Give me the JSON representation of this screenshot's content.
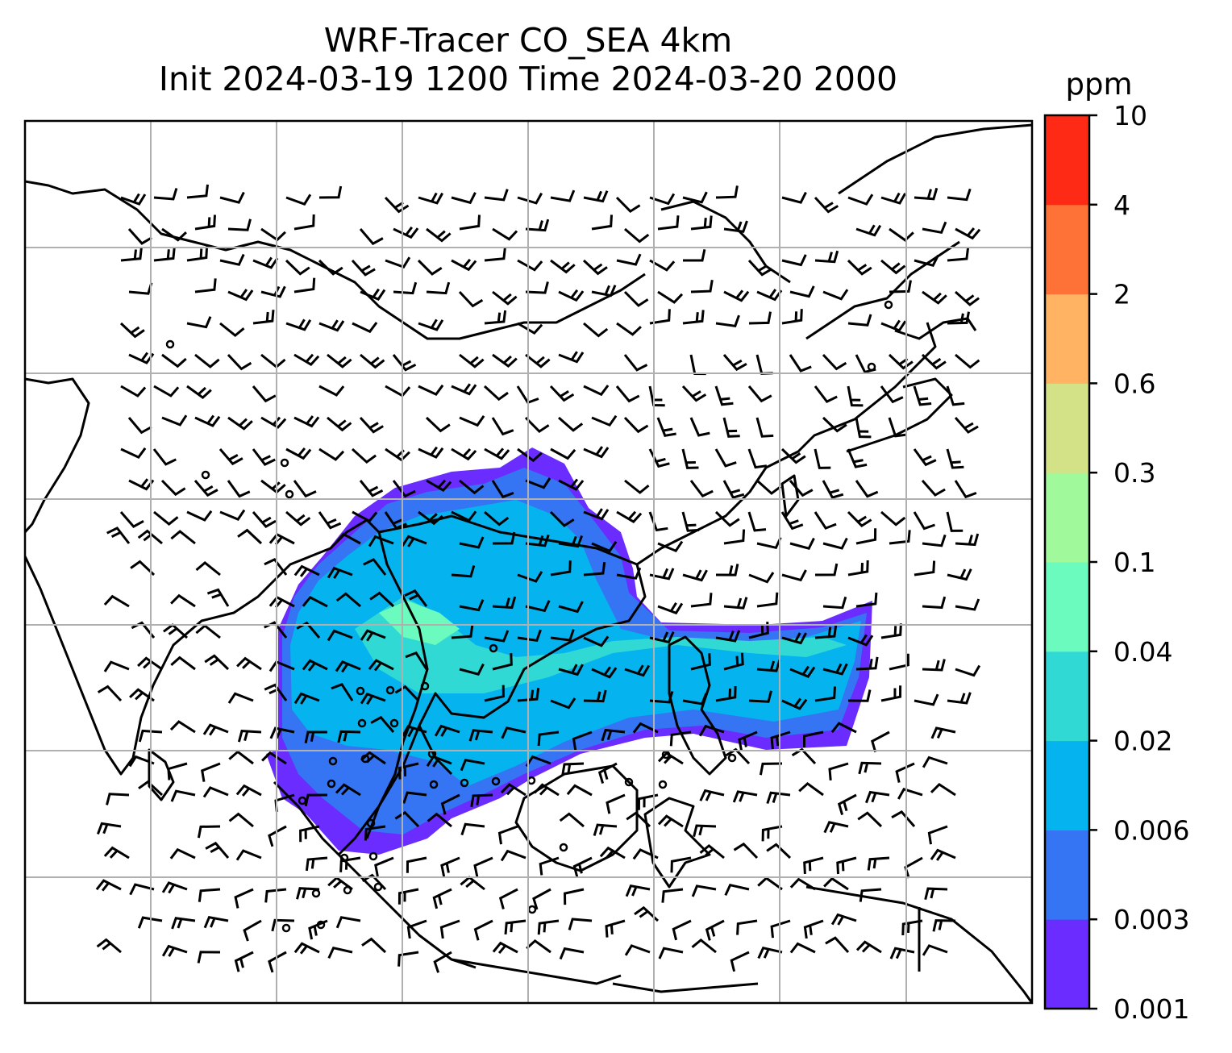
{
  "title": {
    "line1": "WRF-Tracer CO_SEA 4km",
    "line2": "Init 2024-03-19 1200 Time 2024-03-20 2000"
  },
  "colorbar": {
    "unit": "ppm",
    "levels": [
      "0.001",
      "0.003",
      "0.006",
      "0.02",
      "0.04",
      "0.1",
      "0.3",
      "0.6",
      "2",
      "4",
      "10"
    ],
    "colors": [
      "#6a2cff",
      "#3574f2",
      "#05b3ee",
      "#31d9d4",
      "#6bfbbf",
      "#a0f99a",
      "#d3e287",
      "#ffb363",
      "#ff7237",
      "#ff2a16"
    ]
  },
  "map": {
    "variable": "CO tracer concentration with wind barbs",
    "background": "#ffffff",
    "coastline_color": "#000000",
    "grid_color": "#b0b0b0"
  }
}
